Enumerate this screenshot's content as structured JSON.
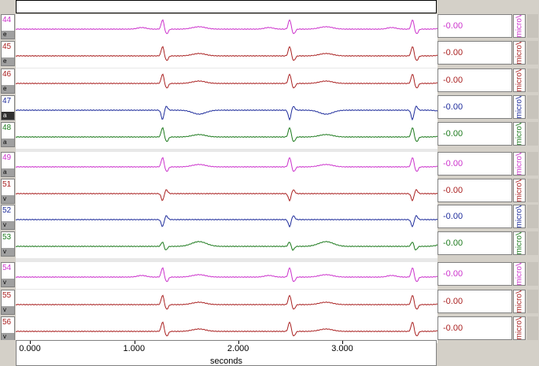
{
  "channels": [
    {
      "num": "44",
      "btn": "e",
      "value": "-0.00",
      "unit": "microV",
      "color": "#cc33cc",
      "dark": false,
      "wave": "pw"
    },
    {
      "num": "45",
      "btn": "e",
      "value": "-0.00",
      "unit": "microV",
      "color": "#aa2222",
      "dark": false,
      "wave": "qrs"
    },
    {
      "num": "46",
      "btn": "e",
      "value": "-0.00",
      "unit": "microV",
      "color": "#aa2222",
      "dark": false,
      "wave": "qrs"
    },
    {
      "num": "47",
      "btn": "a",
      "value": "-0.00",
      "unit": "microV",
      "color": "#1f2d9c",
      "dark": true,
      "wave": "neg"
    },
    {
      "num": "48",
      "btn": "a",
      "value": "-0.00",
      "unit": "microV",
      "color": "#1d7a1d",
      "dark": false,
      "wave": "qrs"
    },
    {
      "num": "49",
      "btn": "a",
      "value": "-0.00",
      "unit": "microV",
      "color": "#cc33cc",
      "dark": false,
      "wave": "qrs"
    },
    {
      "num": "51",
      "btn": "v",
      "value": "-0.00",
      "unit": "microV",
      "color": "#aa2222",
      "dark": false,
      "wave": "negsmall"
    },
    {
      "num": "52",
      "btn": "v",
      "value": "-0.00",
      "unit": "microV",
      "color": "#1f2d9c",
      "dark": false,
      "wave": "negsmall"
    },
    {
      "num": "53",
      "btn": "v",
      "value": "-0.00",
      "unit": "microV",
      "color": "#1d7a1d",
      "dark": false,
      "wave": "twave"
    },
    {
      "num": "54",
      "btn": "v",
      "value": "-0.00",
      "unit": "microV",
      "color": "#cc33cc",
      "dark": false,
      "wave": "pw"
    },
    {
      "num": "55",
      "btn": "v",
      "value": "-0.00",
      "unit": "microV",
      "color": "#aa2222",
      "dark": false,
      "wave": "qrs"
    },
    {
      "num": "56",
      "btn": "v",
      "value": "-0.00",
      "unit": "microV",
      "color": "#aa2222",
      "dark": false,
      "wave": "qrs"
    }
  ],
  "xaxis": {
    "label": "seconds",
    "ticks": [
      {
        "label": "0.000",
        "t": 0
      },
      {
        "label": "1.000",
        "t": 1
      },
      {
        "label": "2.000",
        "t": 2
      },
      {
        "label": "3.000",
        "t": 3
      }
    ],
    "range": [
      -0.13,
      3.92
    ]
  },
  "beats": [
    1.28,
    2.5,
    3.68
  ]
}
